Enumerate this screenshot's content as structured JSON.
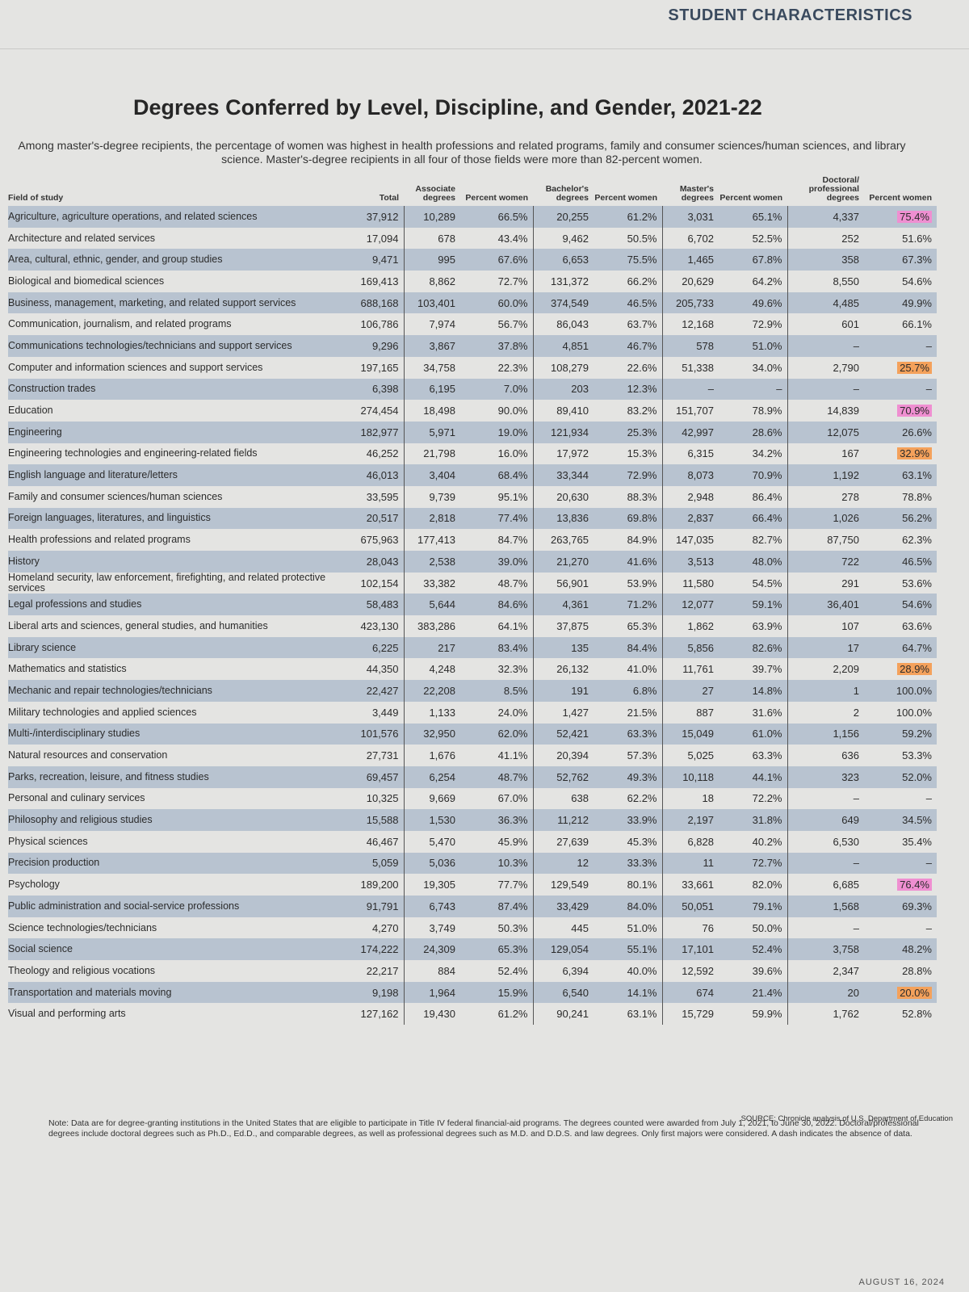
{
  "header": {
    "section": "STUDENT CHARACTERISTICS",
    "title": "Degrees Conferred by Level, Discipline, and Gender, 2021-22",
    "subtitle": "Among master's-degree recipients, the percentage of women was highest in health professions and related programs, family and consumer sciences/human sciences, and library science. Master's-degree recipients in all four of those fields were more than 82-percent women."
  },
  "table": {
    "columns": [
      "Field of study",
      "Total",
      "Associate degrees",
      "Percent women",
      "Bachelor's degrees",
      "Percent women",
      "Master's degrees",
      "Percent women",
      "Doctoral/ professional degrees",
      "Percent women"
    ],
    "rows": [
      [
        "Agriculture, agriculture operations, and related sciences",
        "37,912",
        "10,289",
        "66.5%",
        "20,255",
        "61.2%",
        "3,031",
        "65.1%",
        "4,337",
        "75.4%"
      ],
      [
        "Architecture and related services",
        "17,094",
        "678",
        "43.4%",
        "9,462",
        "50.5%",
        "6,702",
        "52.5%",
        "252",
        "51.6%"
      ],
      [
        "Area, cultural, ethnic, gender, and group studies",
        "9,471",
        "995",
        "67.6%",
        "6,653",
        "75.5%",
        "1,465",
        "67.8%",
        "358",
        "67.3%"
      ],
      [
        "Biological and biomedical sciences",
        "169,413",
        "8,862",
        "72.7%",
        "131,372",
        "66.2%",
        "20,629",
        "64.2%",
        "8,550",
        "54.6%"
      ],
      [
        "Business, management, marketing, and related support services",
        "688,168",
        "103,401",
        "60.0%",
        "374,549",
        "46.5%",
        "205,733",
        "49.6%",
        "4,485",
        "49.9%"
      ],
      [
        "Communication, journalism, and related programs",
        "106,786",
        "7,974",
        "56.7%",
        "86,043",
        "63.7%",
        "12,168",
        "72.9%",
        "601",
        "66.1%"
      ],
      [
        "Communications technologies/technicians and support services",
        "9,296",
        "3,867",
        "37.8%",
        "4,851",
        "46.7%",
        "578",
        "51.0%",
        "–",
        "–"
      ],
      [
        "Computer and information sciences and support services",
        "197,165",
        "34,758",
        "22.3%",
        "108,279",
        "22.6%",
        "51,338",
        "34.0%",
        "2,790",
        "25.7%"
      ],
      [
        "Construction trades",
        "6,398",
        "6,195",
        "7.0%",
        "203",
        "12.3%",
        "–",
        "–",
        "–",
        "–"
      ],
      [
        "Education",
        "274,454",
        "18,498",
        "90.0%",
        "89,410",
        "83.2%",
        "151,707",
        "78.9%",
        "14,839",
        "70.9%"
      ],
      [
        "Engineering",
        "182,977",
        "5,971",
        "19.0%",
        "121,934",
        "25.3%",
        "42,997",
        "28.6%",
        "12,075",
        "26.6%"
      ],
      [
        "Engineering technologies and engineering-related fields",
        "46,252",
        "21,798",
        "16.0%",
        "17,972",
        "15.3%",
        "6,315",
        "34.2%",
        "167",
        "32.9%"
      ],
      [
        "English language and literature/letters",
        "46,013",
        "3,404",
        "68.4%",
        "33,344",
        "72.9%",
        "8,073",
        "70.9%",
        "1,192",
        "63.1%"
      ],
      [
        "Family and consumer sciences/human sciences",
        "33,595",
        "9,739",
        "95.1%",
        "20,630",
        "88.3%",
        "2,948",
        "86.4%",
        "278",
        "78.8%"
      ],
      [
        "Foreign languages, literatures, and linguistics",
        "20,517",
        "2,818",
        "77.4%",
        "13,836",
        "69.8%",
        "2,837",
        "66.4%",
        "1,026",
        "56.2%"
      ],
      [
        "Health professions and related programs",
        "675,963",
        "177,413",
        "84.7%",
        "263,765",
        "84.9%",
        "147,035",
        "82.7%",
        "87,750",
        "62.3%"
      ],
      [
        "History",
        "28,043",
        "2,538",
        "39.0%",
        "21,270",
        "41.6%",
        "3,513",
        "48.0%",
        "722",
        "46.5%"
      ],
      [
        "Homeland security, law enforcement, firefighting, and related protective services",
        "102,154",
        "33,382",
        "48.7%",
        "56,901",
        "53.9%",
        "11,580",
        "54.5%",
        "291",
        "53.6%"
      ],
      [
        "Legal professions and studies",
        "58,483",
        "5,644",
        "84.6%",
        "4,361",
        "71.2%",
        "12,077",
        "59.1%",
        "36,401",
        "54.6%"
      ],
      [
        "Liberal arts and sciences, general studies, and humanities",
        "423,130",
        "383,286",
        "64.1%",
        "37,875",
        "65.3%",
        "1,862",
        "63.9%",
        "107",
        "63.6%"
      ],
      [
        "Library science",
        "6,225",
        "217",
        "83.4%",
        "135",
        "84.4%",
        "5,856",
        "82.6%",
        "17",
        "64.7%"
      ],
      [
        "Mathematics and statistics",
        "44,350",
        "4,248",
        "32.3%",
        "26,132",
        "41.0%",
        "11,761",
        "39.7%",
        "2,209",
        "28.9%"
      ],
      [
        "Mechanic and repair technologies/technicians",
        "22,427",
        "22,208",
        "8.5%",
        "191",
        "6.8%",
        "27",
        "14.8%",
        "1",
        "100.0%"
      ],
      [
        "Military technologies and applied sciences",
        "3,449",
        "1,133",
        "24.0%",
        "1,427",
        "21.5%",
        "887",
        "31.6%",
        "2",
        "100.0%"
      ],
      [
        "Multi-/interdisciplinary studies",
        "101,576",
        "32,950",
        "62.0%",
        "52,421",
        "63.3%",
        "15,049",
        "61.0%",
        "1,156",
        "59.2%"
      ],
      [
        "Natural resources and conservation",
        "27,731",
        "1,676",
        "41.1%",
        "20,394",
        "57.3%",
        "5,025",
        "63.3%",
        "636",
        "53.3%"
      ],
      [
        "Parks, recreation, leisure, and fitness studies",
        "69,457",
        "6,254",
        "48.7%",
        "52,762",
        "49.3%",
        "10,118",
        "44.1%",
        "323",
        "52.0%"
      ],
      [
        "Personal and culinary services",
        "10,325",
        "9,669",
        "67.0%",
        "638",
        "62.2%",
        "18",
        "72.2%",
        "–",
        "–"
      ],
      [
        "Philosophy and religious studies",
        "15,588",
        "1,530",
        "36.3%",
        "11,212",
        "33.9%",
        "2,197",
        "31.8%",
        "649",
        "34.5%"
      ],
      [
        "Physical sciences",
        "46,467",
        "5,470",
        "45.9%",
        "27,639",
        "45.3%",
        "6,828",
        "40.2%",
        "6,530",
        "35.4%"
      ],
      [
        "Precision production",
        "5,059",
        "5,036",
        "10.3%",
        "12",
        "33.3%",
        "11",
        "72.7%",
        "–",
        "–"
      ],
      [
        "Psychology",
        "189,200",
        "19,305",
        "77.7%",
        "129,549",
        "80.1%",
        "33,661",
        "82.0%",
        "6,685",
        "76.4%"
      ],
      [
        "Public administration and social-service professions",
        "91,791",
        "6,743",
        "87.4%",
        "33,429",
        "84.0%",
        "50,051",
        "79.1%",
        "1,568",
        "69.3%"
      ],
      [
        "Science technologies/technicians",
        "4,270",
        "3,749",
        "50.3%",
        "445",
        "51.0%",
        "76",
        "50.0%",
        "–",
        "–"
      ],
      [
        "Social science",
        "174,222",
        "24,309",
        "65.3%",
        "129,054",
        "55.1%",
        "17,101",
        "52.4%",
        "3,758",
        "48.2%"
      ],
      [
        "Theology and religious vocations",
        "22,217",
        "884",
        "52.4%",
        "6,394",
        "40.0%",
        "12,592",
        "39.6%",
        "2,347",
        "28.8%"
      ],
      [
        "Transportation and materials moving",
        "9,198",
        "1,964",
        "15.9%",
        "6,540",
        "14.1%",
        "674",
        "21.4%",
        "20",
        "20.0%"
      ],
      [
        "Visual and performing arts",
        "127,162",
        "19,430",
        "61.2%",
        "90,241",
        "63.1%",
        "15,729",
        "59.9%",
        "1,762",
        "52.8%"
      ]
    ]
  },
  "footer": {
    "note": "Note: Data are for degree-granting institutions in the United States that are eligible to participate in Title IV federal financial-aid programs. The degrees counted were awarded from July 1, 2021, to June 30, 2022. Doctoral/professional degrees include doctoral degrees such as Ph.D., Ed.D., and comparable degrees, as well as professional degrees such as M.D. and D.D.S. and law degrees. Only first majors were considered. A dash indicates the absence of data.",
    "source": "SOURCE: Chronicle analysis of U.S. Department of Education",
    "date": "AUGUST 16, 2024"
  }
}
